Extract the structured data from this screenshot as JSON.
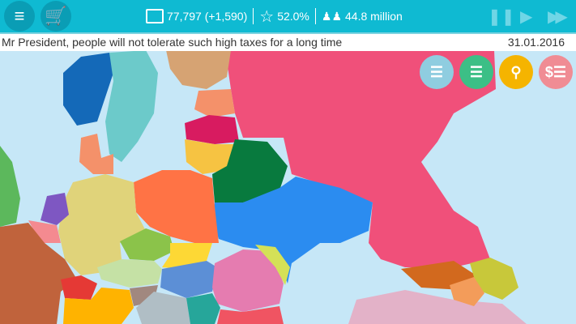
{
  "topbar": {
    "menu_icon": "hamburger-menu-icon",
    "shop_icon": "shopping-cart-icon",
    "money": "77,797 (+1,590)",
    "approval": "52.0%",
    "population": "44.8 million",
    "controls": [
      "pause-icon",
      "play-icon",
      "fast-forward-icon"
    ]
  },
  "message": {
    "text": "Mr President, people will not tolerate such high taxes for a long time",
    "date": "31.01.2016"
  },
  "actions": [
    {
      "name": "laws",
      "icon": "flag-list-icon",
      "color": "#8fcde0"
    },
    {
      "name": "security",
      "icon": "shield-list-icon",
      "color": "#3cbf86"
    },
    {
      "name": "resources",
      "icon": "gold-location-icon",
      "color": "#f5b400"
    },
    {
      "name": "budget",
      "icon": "dollar-list-icon",
      "color": "#f08c94"
    }
  ],
  "colors": {
    "topbar": "#0fbad2",
    "sea": "#c6e7f7",
    "player_country_ukraine": "#2b8cf0"
  }
}
